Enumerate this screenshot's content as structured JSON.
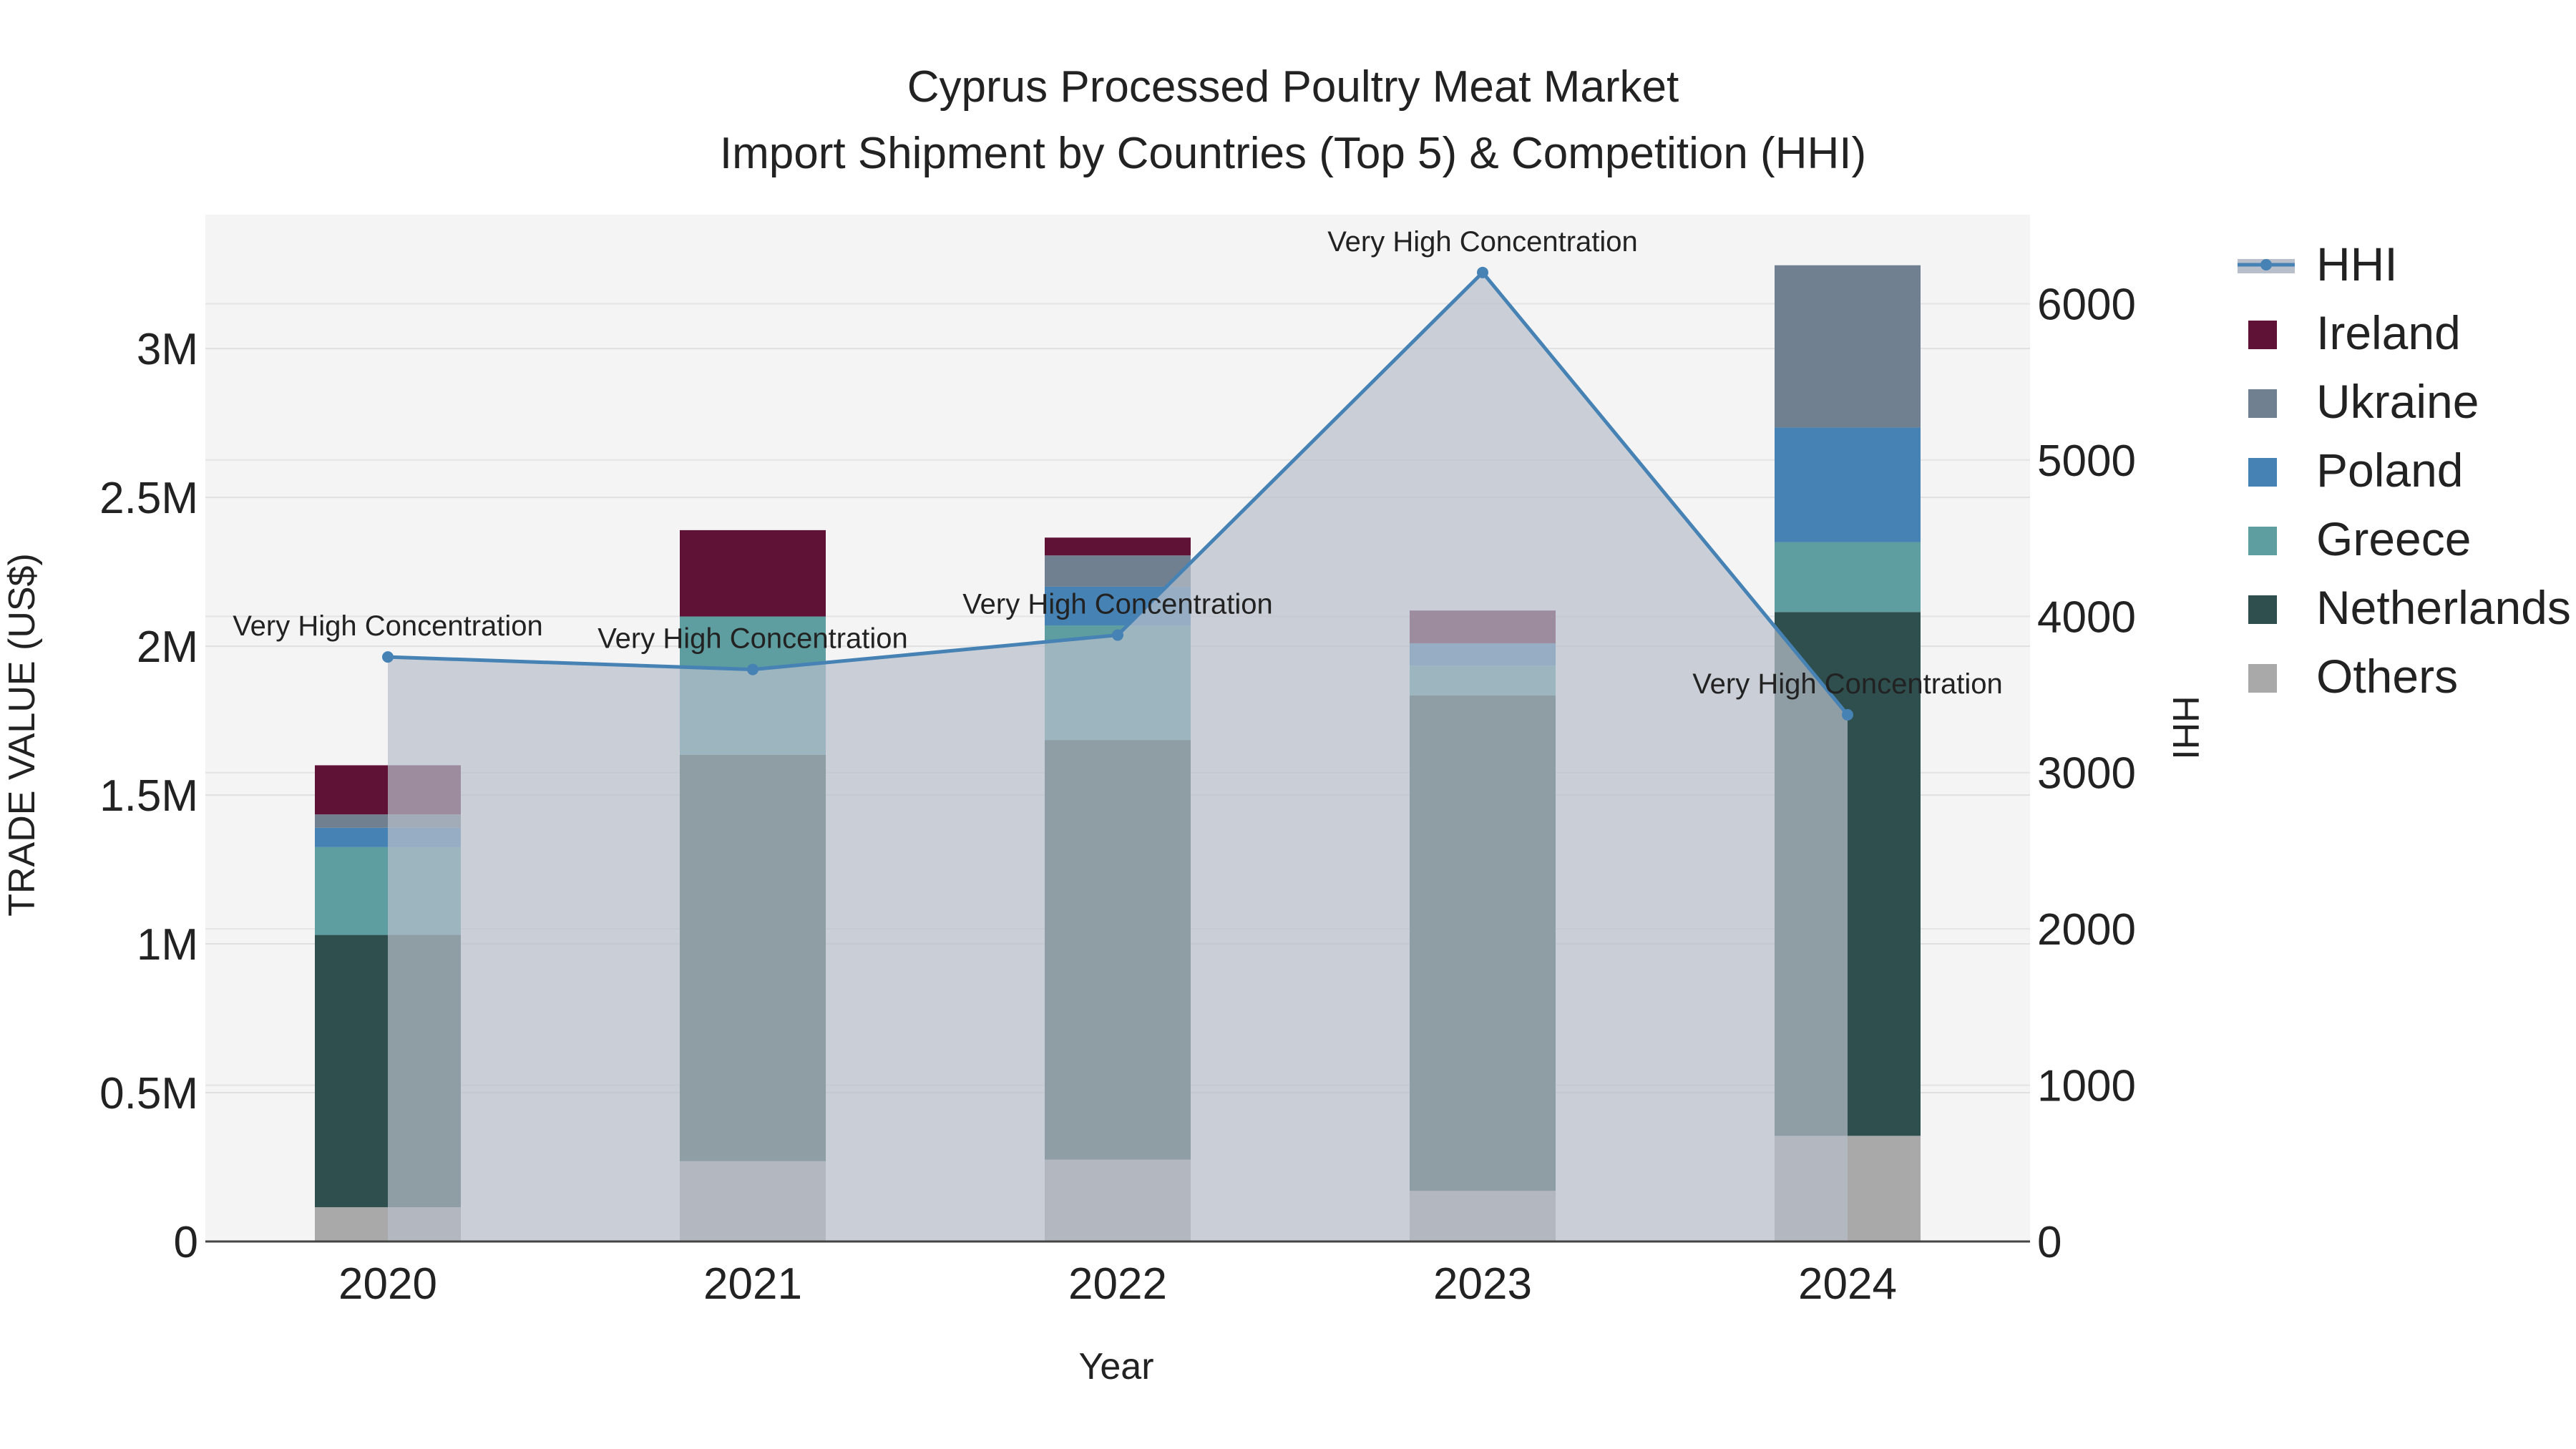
{
  "chart_data": {
    "type": "bar",
    "title_line1": "Cyprus Processed Poultry Meat Market",
    "title_line2": "Import Shipment by Countries (Top 5) & Competition (HHI)",
    "xlabel": "Year",
    "ylabel": "TRADE VALUE (US$)",
    "y2label": "HHI",
    "categories": [
      "2020",
      "2021",
      "2022",
      "2023",
      "2024"
    ],
    "ylim": [
      0,
      3450000
    ],
    "y_ticks": [
      {
        "value": 0,
        "label": "0"
      },
      {
        "value": 500000,
        "label": "0.5M"
      },
      {
        "value": 1000000,
        "label": "1M"
      },
      {
        "value": 1500000,
        "label": "1.5M"
      },
      {
        "value": 2000000,
        "label": "2M"
      },
      {
        "value": 2500000,
        "label": "2.5M"
      },
      {
        "value": 3000000,
        "label": "3M"
      }
    ],
    "y2lim": [
      0,
      6570
    ],
    "y2_ticks": [
      {
        "value": 0,
        "label": "0"
      },
      {
        "value": 1000,
        "label": "1000"
      },
      {
        "value": 2000,
        "label": "2000"
      },
      {
        "value": 3000,
        "label": "3000"
      },
      {
        "value": 4000,
        "label": "4000"
      },
      {
        "value": 5000,
        "label": "5000"
      },
      {
        "value": 6000,
        "label": "6000"
      }
    ],
    "series": [
      {
        "name": "Others",
        "color": "#a9a9a9",
        "values": [
          115000,
          270000,
          275000,
          170000,
          355000
        ]
      },
      {
        "name": "Netherlands",
        "color": "#2f4f4f",
        "values": [
          915000,
          1365000,
          1410000,
          1665000,
          1760000
        ]
      },
      {
        "name": "Greece",
        "color": "#5f9ea0",
        "values": [
          295000,
          465000,
          385000,
          100000,
          235000
        ]
      },
      {
        "name": "Poland",
        "color": "#4682b4",
        "values": [
          65000,
          0,
          130000,
          75000,
          385000
        ]
      },
      {
        "name": "Ukraine",
        "color": "#708090",
        "values": [
          45000,
          0,
          105000,
          0,
          545000
        ]
      },
      {
        "name": "Ireland",
        "color": "#601236",
        "values": [
          165000,
          290000,
          60000,
          110000,
          0
        ]
      }
    ],
    "hhi": {
      "name": "HHI",
      "color": "#4682b4",
      "values": [
        3740,
        3660,
        3880,
        6200,
        3370
      ],
      "annotations": [
        "Very High Concentration",
        "Very High Concentration",
        "Very High Concentration",
        "Very High Concentration",
        "Very High Concentration"
      ]
    },
    "legend": [
      "HHI",
      "Ireland",
      "Ukraine",
      "Poland",
      "Greece",
      "Netherlands",
      "Others"
    ],
    "legend_position": "right",
    "grid": true,
    "plot_background": "#f4f4f4"
  }
}
